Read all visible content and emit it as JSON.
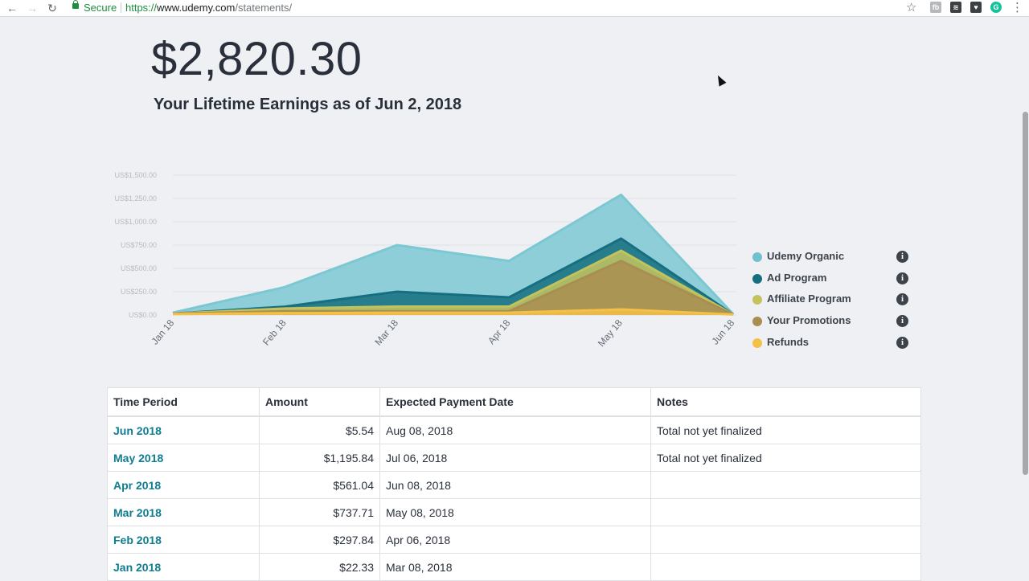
{
  "browser": {
    "secure_label": "Secure",
    "url_protocol": "https://",
    "url_host": "www.udemy.com",
    "url_path": "/statements/",
    "extensions": [
      {
        "name": "fb-extension-icon",
        "label": "fb",
        "color": "#b6b8bb"
      },
      {
        "name": "layers-extension-icon",
        "label": "≋",
        "color": "#3c4043"
      },
      {
        "name": "pocket-extension-icon",
        "label": "♥",
        "color": "#3c4043"
      },
      {
        "name": "grammarly-extension-icon",
        "label": "G",
        "color": "#15c39a"
      }
    ]
  },
  "summary": {
    "total_amount": "$2,820.30",
    "subtitle": "Your Lifetime Earnings as of Jun 2, 2018"
  },
  "chart_data": {
    "type": "area",
    "stacked": true,
    "categories": [
      "Jan 18",
      "Feb 18",
      "Mar 18",
      "Apr 18",
      "May 18",
      "Jun 18"
    ],
    "y_tick_labels": [
      "US$0.00",
      "US$250.00",
      "US$500.00",
      "US$750.00",
      "US$1,000.00",
      "US$1,250.00",
      "US$1,500.00"
    ],
    "ylim": [
      0,
      1500
    ],
    "series": [
      {
        "name": "Refunds",
        "color": "#f4c048",
        "values": [
          10,
          20,
          25,
          25,
          60,
          5
        ]
      },
      {
        "name": "Your Promotions",
        "color": "#a98e52",
        "values": [
          5,
          20,
          15,
          15,
          520,
          0
        ]
      },
      {
        "name": "Affiliate Program",
        "color": "#c3c35e",
        "values": [
          0,
          30,
          50,
          50,
          110,
          0
        ]
      },
      {
        "name": "Ad Program",
        "color": "#166f80",
        "values": [
          0,
          20,
          160,
          100,
          130,
          0
        ]
      },
      {
        "name": "Udemy Organic",
        "color": "#7cc8d2",
        "values": [
          10,
          210,
          500,
          390,
          470,
          5
        ]
      }
    ],
    "legend_position": "right"
  },
  "legend": [
    {
      "label": "Udemy Organic",
      "color": "#6ec1cd"
    },
    {
      "label": "Ad Program",
      "color": "#166f80"
    },
    {
      "label": "Affiliate Program",
      "color": "#c3c35e"
    },
    {
      "label": "Your Promotions",
      "color": "#a98e52"
    },
    {
      "label": "Refunds",
      "color": "#f4c048"
    }
  ],
  "table": {
    "headers": [
      "Time Period",
      "Amount",
      "Expected Payment Date",
      "Notes"
    ],
    "rows": [
      {
        "period": "Jun 2018",
        "amount": "$5.54",
        "date": "Aug 08, 2018",
        "notes": "Total not yet finalized"
      },
      {
        "period": "May 2018",
        "amount": "$1,195.84",
        "date": "Jul 06, 2018",
        "notes": "Total not yet finalized"
      },
      {
        "period": "Apr 2018",
        "amount": "$561.04",
        "date": "Jun 08, 2018",
        "notes": ""
      },
      {
        "period": "Mar 2018",
        "amount": "$737.71",
        "date": "May 08, 2018",
        "notes": ""
      },
      {
        "period": "Feb 2018",
        "amount": "$297.84",
        "date": "Apr 06, 2018",
        "notes": ""
      },
      {
        "period": "Jan 2018",
        "amount": "$22.33",
        "date": "Mar 08, 2018",
        "notes": ""
      }
    ]
  }
}
